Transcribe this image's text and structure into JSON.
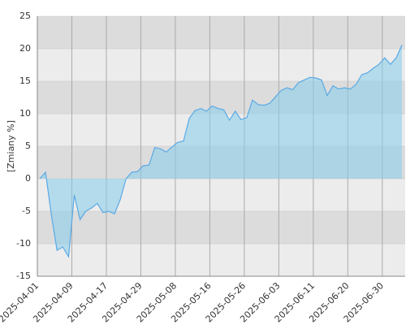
{
  "chart_data": {
    "type": "area",
    "y_label": "[Zmiany %]",
    "categories": [
      "2025-04-01",
      null,
      null,
      null,
      null,
      null,
      "2025-04-09",
      null,
      null,
      null,
      null,
      null,
      "2025-04-17",
      null,
      null,
      null,
      null,
      null,
      "2025-04-29",
      null,
      null,
      null,
      null,
      null,
      "2025-05-08",
      null,
      null,
      null,
      null,
      null,
      "2025-05-16",
      null,
      null,
      null,
      null,
      null,
      "2025-05-26",
      null,
      null,
      null,
      null,
      null,
      "2025-06-03",
      null,
      null,
      null,
      null,
      null,
      "2025-06-11",
      null,
      null,
      null,
      null,
      null,
      "2025-06-20",
      null,
      null,
      null,
      null,
      null,
      "2025-06-30",
      null,
      null,
      null
    ],
    "values": [
      0,
      1,
      -5.5,
      -11,
      -10.5,
      -12,
      -2.5,
      -6.3,
      -5,
      -4.5,
      -3.8,
      -5.2,
      -5,
      -5.4,
      -3.2,
      0,
      1,
      1.1,
      2,
      2.1,
      4.8,
      4.6,
      4.1,
      4.9,
      5.6,
      5.8,
      9.3,
      10.5,
      10.8,
      10.4,
      11.2,
      10.8,
      10.6,
      9,
      10.4,
      9.1,
      9.4,
      12.1,
      11.4,
      11.3,
      11.6,
      12.6,
      13.6,
      14,
      13.7,
      14.8,
      15.2,
      15.6,
      15.5,
      15.2,
      12.8,
      14.3,
      13.8,
      14,
      13.8,
      14.5,
      16,
      16.3,
      17,
      17.6,
      18.6,
      17.6,
      18.6,
      20.6
    ],
    "color": "#5aa9e6",
    "ylim": [
      -15,
      25
    ],
    "yticks": [
      -15,
      -10,
      -5,
      0,
      5,
      10,
      15,
      20,
      25
    ],
    "grid": true
  }
}
